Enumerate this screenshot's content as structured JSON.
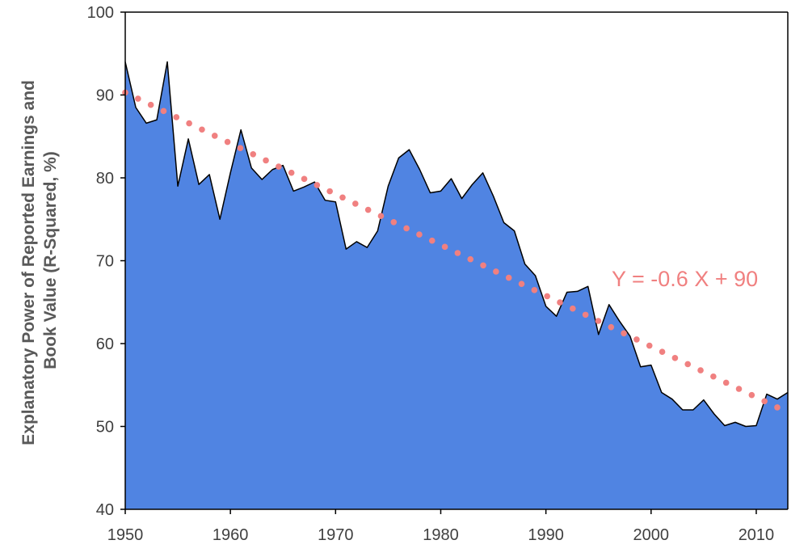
{
  "chart_data": {
    "type": "area",
    "xlabel": "",
    "ylabel_lines": [
      "Explanatory Power of Reported Earnings and",
      "Book Value (R-Squared, %)"
    ],
    "xlim": [
      1950,
      2013
    ],
    "ylim": [
      40,
      100
    ],
    "x_ticks": [
      1950,
      1960,
      1970,
      1980,
      1990,
      2000,
      2010
    ],
    "y_ticks": [
      40,
      50,
      60,
      70,
      80,
      90,
      100
    ],
    "grid": false,
    "series": [
      {
        "x": [
          1950,
          1951,
          1952,
          1953,
          1954,
          1955,
          1956,
          1957,
          1958,
          1959,
          1960,
          1961,
          1962,
          1963,
          1964,
          1965,
          1966,
          1967,
          1968,
          1969,
          1970,
          1971,
          1972,
          1973,
          1974,
          1975,
          1976,
          1977,
          1978,
          1979,
          1980,
          1981,
          1982,
          1983,
          1984,
          1985,
          1986,
          1987,
          1988,
          1989,
          1990,
          1991,
          1992,
          1993,
          1994,
          1995,
          1996,
          1997,
          1998,
          1999,
          2000,
          2001,
          2002,
          2003,
          2004,
          2005,
          2006,
          2007,
          2008,
          2009,
          2010,
          2011,
          2012,
          2013
        ],
        "values": [
          94,
          88.5,
          86.6,
          87,
          94,
          79,
          84.7,
          79.2,
          80.4,
          75,
          80.6,
          85.8,
          81.2,
          79.8,
          81,
          81.5,
          78.4,
          78.9,
          79.5,
          77.3,
          77.1,
          71.4,
          72.3,
          71.6,
          73.6,
          79,
          82.4,
          83.4,
          81,
          78.2,
          78.4,
          79.9,
          77.5,
          79.2,
          80.6,
          77.8,
          74.6,
          73.6,
          69.6,
          68.2,
          64.5,
          63.3,
          66.2,
          66.3,
          66.9,
          61.1,
          64.7,
          62.7,
          60.9,
          57.2,
          57.4,
          54.1,
          53.3,
          52,
          52,
          53.2,
          51.5,
          50.1,
          50.5,
          50,
          50.1,
          53.9,
          53.3,
          54.1
        ],
        "fill_color": "#5084e2",
        "line_color": "#000000"
      },
      {
        "kind": "trendline",
        "style": "dotted",
        "color": "#f08080",
        "x_range": [
          1950,
          2012
        ],
        "values_range": [
          90.3,
          52.3
        ]
      }
    ],
    "annotations": [
      {
        "text": "Y = -0.6 X + 90",
        "color": "#f08080"
      }
    ]
  }
}
